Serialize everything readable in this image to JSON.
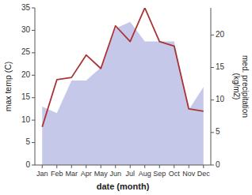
{
  "chart_data": {
    "type": "line",
    "categories": [
      "Jan",
      "Feb",
      "Mar",
      "Apr",
      "May",
      "Jun",
      "Jul",
      "Aug",
      "Sep",
      "Oct",
      "Nov",
      "Dec"
    ],
    "xlabel": "date (month)",
    "ylabel": "max temp (C)",
    "y2label": "med. precipitation\n(kg/m2)",
    "series": [
      {
        "type": "area",
        "axis": "y2",
        "color": "#c5c8e8",
        "values": [
          9.0,
          8.0,
          13.0,
          13.0,
          15.0,
          21.0,
          22.0,
          19.0,
          19.0,
          19.0,
          8.5,
          12.0
        ]
      },
      {
        "type": "line",
        "color": "#aa3333",
        "values": [
          8.5,
          19.0,
          19.5,
          24.5,
          21.5,
          31.0,
          27.5,
          35.0,
          27.5,
          26.5,
          12.5,
          12.0
        ]
      }
    ],
    "ylim": [
      0,
      35
    ],
    "yticks": [
      0,
      5,
      10,
      15,
      20,
      25,
      30,
      35
    ],
    "y2lim": [
      0,
      24.17
    ],
    "y2ticks": [
      0,
      5,
      10,
      15,
      20
    ],
    "grid": false
  }
}
